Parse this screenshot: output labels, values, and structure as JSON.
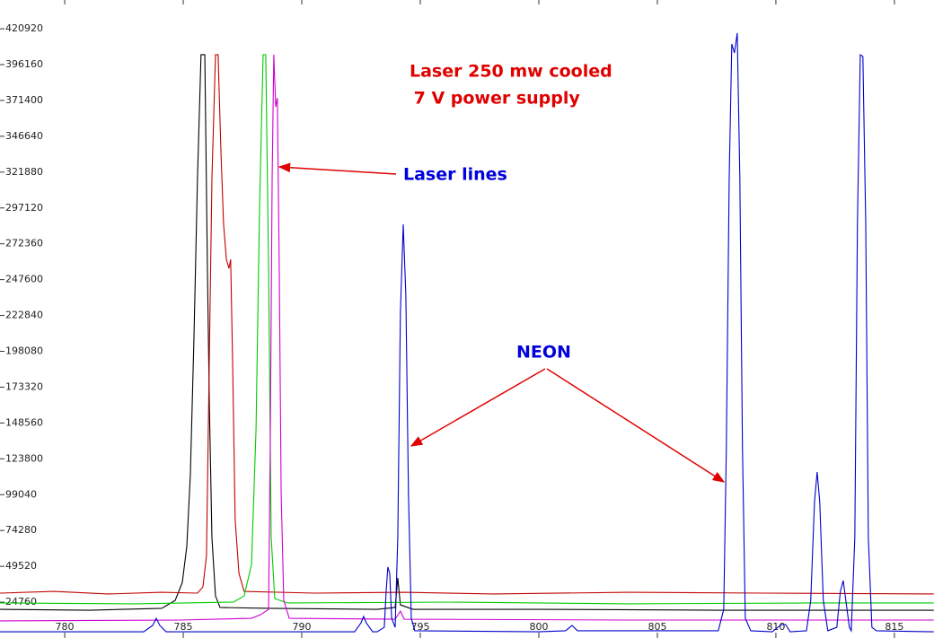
{
  "chart_data": {
    "type": "line",
    "annotations": [
      "Laser 250 mw cooled",
      " 7 V power supply",
      "Laser lines",
      "NEON"
    ],
    "xlim": [
      777.27,
      816.67
    ],
    "ylim": [
      0,
      440800
    ],
    "xticks": [
      780,
      785,
      790,
      795,
      800,
      805,
      810,
      815
    ],
    "yticks": [
      24760,
      49520,
      74280,
      99040,
      123800,
      148560,
      173320,
      198080,
      222840,
      247600,
      272360,
      297120,
      321880,
      346640,
      371400,
      396160,
      420920
    ],
    "series": [
      {
        "color": "#000000",
        "x": [
          777.27,
          781.06,
          784.09,
          784.66,
          784.96,
          785.15,
          785.3,
          785.45,
          785.6,
          785.75,
          785.91,
          786.02,
          786.1,
          786.21,
          786.36,
          786.55,
          788.63,
          793.18,
          793.94,
          794.05,
          794.16,
          794.69,
          799.98,
          807.57,
          816.66
        ],
        "values": [
          19800,
          19200,
          20500,
          26000,
          38400,
          63200,
          112800,
          205800,
          317400,
          403000,
          403000,
          255400,
          162400,
          69400,
          29100,
          21100,
          20500,
          19800,
          21100,
          41500,
          22900,
          19800,
          19800,
          19200,
          19200
        ]
      },
      {
        "color": "#c00000",
        "x": [
          777.27,
          779.54,
          781.82,
          784.09,
          785.6,
          785.83,
          785.98,
          786.1,
          786.21,
          786.36,
          786.47,
          786.59,
          786.7,
          786.82,
          786.93,
          787.0,
          787.08,
          787.19,
          787.35,
          787.57,
          790.53,
          794.32,
          798.1,
          803.79,
          809.47,
          816.66
        ],
        "values": [
          31000,
          32200,
          30400,
          31600,
          31000,
          35300,
          57000,
          193400,
          317400,
          403000,
          403000,
          336000,
          286400,
          261600,
          255400,
          261600,
          193400,
          81800,
          44600,
          32200,
          31000,
          31600,
          30400,
          31600,
          31000,
          30400
        ]
      },
      {
        "color": "#00cc00",
        "x": [
          777.27,
          782.95,
          787.12,
          787.57,
          787.88,
          788.07,
          788.22,
          788.37,
          788.48,
          788.6,
          788.71,
          788.86,
          789.39,
          796.21,
          803.79,
          811.36,
          816.66
        ],
        "values": [
          24200,
          23600,
          24800,
          29100,
          50800,
          143800,
          298800,
          403000,
          403000,
          255400,
          69400,
          27300,
          24200,
          24800,
          23600,
          24200,
          24200
        ]
      },
      {
        "color": "#d000d0",
        "x": [
          777.27,
          784.85,
          787.88,
          788.26,
          788.6,
          788.67,
          788.75,
          788.82,
          788.9,
          788.97,
          789.05,
          789.13,
          789.24,
          789.47,
          793.94,
          794.16,
          794.32,
          803.79,
          816.66
        ],
        "values": [
          11800,
          12400,
          13600,
          16100,
          19800,
          131400,
          317400,
          403000,
          367000,
          373200,
          255400,
          100400,
          26000,
          13600,
          13000,
          18600,
          13000,
          12400,
          12400
        ]
      },
      {
        "color": "#0000cc",
        "x": [
          777.27,
          783.33,
          783.71,
          783.86,
          784.01,
          784.28,
          792.23,
          792.5,
          792.61,
          792.72,
          792.99,
          793.18,
          793.48,
          793.56,
          793.63,
          793.71,
          793.79,
          793.94,
          794.05,
          794.16,
          794.28,
          794.39,
          794.5,
          794.62,
          794.77,
          799.98,
          801.13,
          801.4,
          801.63,
          807.57,
          807.8,
          807.91,
          808.03,
          808.14,
          808.25,
          808.37,
          808.48,
          808.59,
          808.71,
          808.94,
          809.85,
          810.23,
          810.41,
          810.6,
          811.29,
          811.47,
          811.63,
          811.74,
          811.85,
          812.0,
          812.19,
          812.57,
          812.72,
          812.84,
          812.95,
          813.1,
          813.18,
          813.33,
          813.44,
          813.56,
          813.67,
          813.79,
          813.9,
          814.05,
          814.24,
          816.66
        ],
        "values": [
          4300,
          4300,
          8700,
          13600,
          8700,
          4300,
          4300,
          10500,
          14900,
          10500,
          4300,
          4300,
          7400,
          32200,
          49000,
          44600,
          13600,
          7400,
          69400,
          224400,
          285800,
          236800,
          100400,
          13600,
          5000,
          4300,
          5000,
          8700,
          5000,
          5000,
          19800,
          131400,
          317400,
          410400,
          404200,
          417900,
          317400,
          131400,
          13600,
          5000,
          4300,
          9300,
          9300,
          4300,
          5000,
          26000,
          94200,
          114700,
          94200,
          26000,
          5000,
          7400,
          32200,
          39700,
          26000,
          7400,
          5000,
          69400,
          286400,
          403000,
          401800,
          286400,
          69400,
          7400,
          5000,
          4300
        ]
      }
    ]
  }
}
